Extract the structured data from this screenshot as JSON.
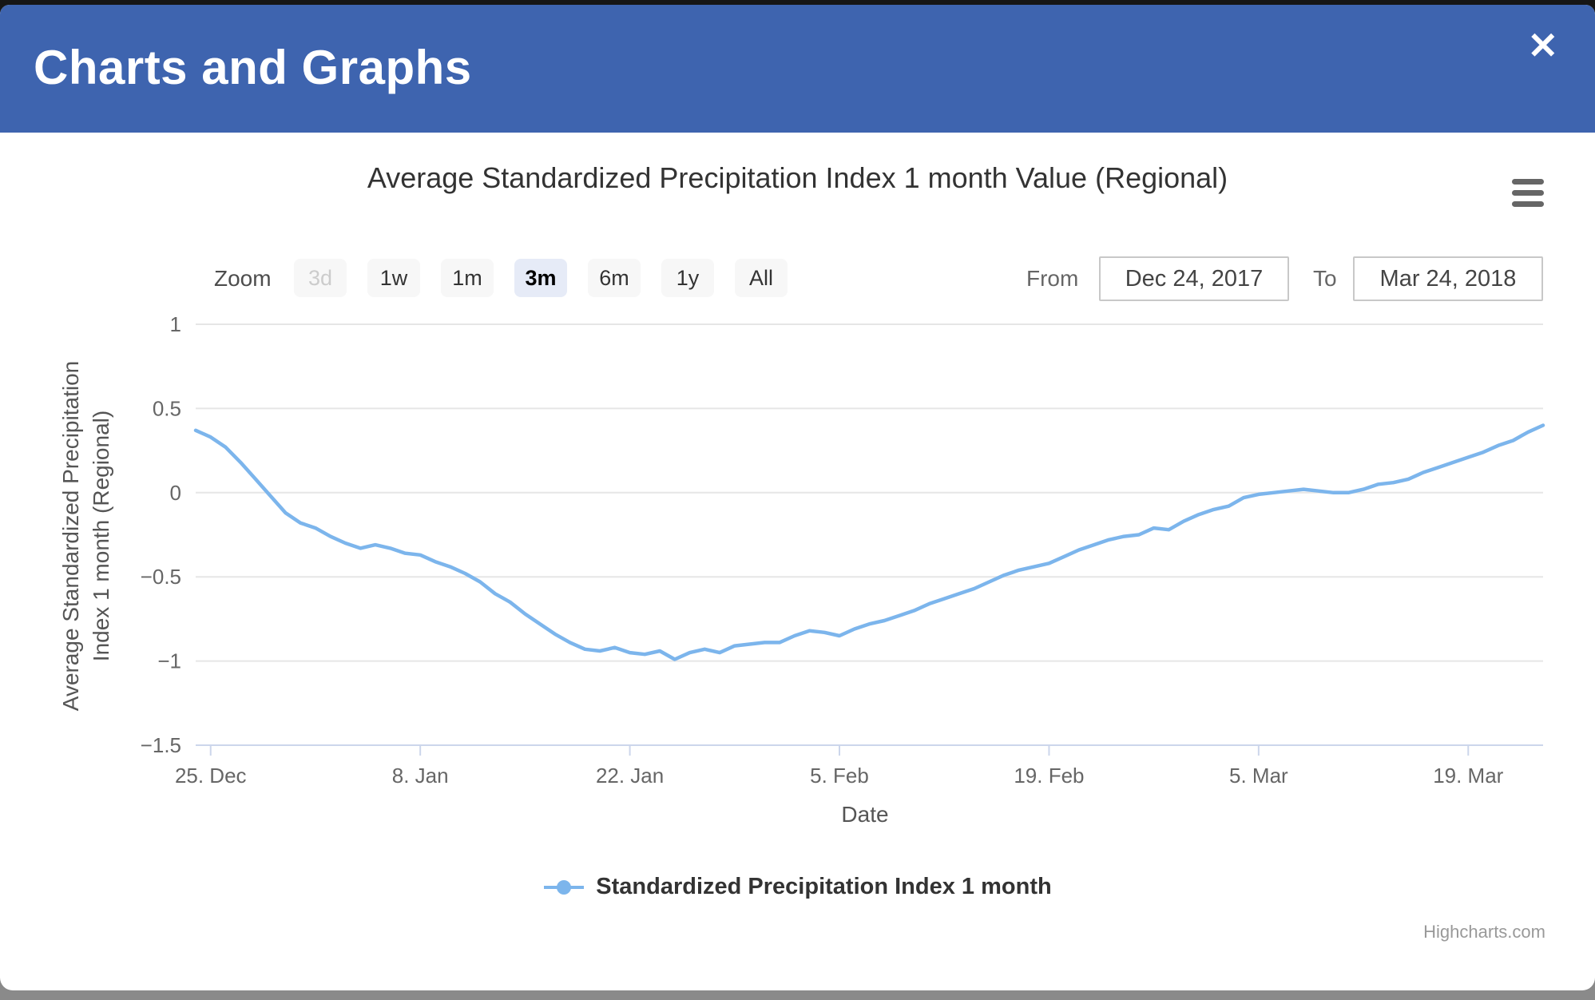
{
  "modal": {
    "title": "Charts and Graphs",
    "close_glyph": "✕"
  },
  "chart": {
    "title": "Average Standardized Precipitation Index 1 month Value (Regional)",
    "range_selector": {
      "zoom_label": "Zoom",
      "buttons": [
        {
          "label": "3d",
          "state": "disabled"
        },
        {
          "label": "1w",
          "state": "normal"
        },
        {
          "label": "1m",
          "state": "normal"
        },
        {
          "label": "3m",
          "state": "selected"
        },
        {
          "label": "6m",
          "state": "normal"
        },
        {
          "label": "1y",
          "state": "normal"
        },
        {
          "label": "All",
          "state": "normal"
        }
      ],
      "from_label": "From",
      "from_value": "Dec 24, 2017",
      "to_label": "To",
      "to_value": "Mar 24, 2018"
    },
    "credits": "Highcharts.com"
  },
  "chart_data": {
    "type": "line",
    "title": "Average Standardized Precipitation Index 1 month Value (Regional)",
    "xlabel": "Date",
    "ylabel_line1": "Average Standardized Precipitation",
    "ylabel_line2": "Index 1 month (Regional)",
    "x_range": [
      "Dec 24, 2017",
      "Mar 24, 2018"
    ],
    "x_ticks": [
      "25. Dec",
      "8. Jan",
      "22. Jan",
      "5. Feb",
      "19. Feb",
      "5. Mar",
      "19. Mar"
    ],
    "x_tick_days": [
      1,
      15,
      29,
      43,
      57,
      71,
      85
    ],
    "xlim_days": [
      0,
      90
    ],
    "y_ticks": [
      1,
      0.5,
      0,
      -0.5,
      -1,
      -1.5
    ],
    "y_tick_labels": [
      "1",
      "0.5",
      "0",
      "−0.5",
      "−1",
      "−1.5"
    ],
    "ylim": [
      -1.5,
      1
    ],
    "grid": true,
    "legend_position": "bottom",
    "series": [
      {
        "name": "Standardized Precipitation Index 1 month",
        "color": "#7cb5ec",
        "interval": "daily",
        "start_date": "2017-12-24",
        "end_date": "2018-03-24",
        "values": [
          0.37,
          0.33,
          0.27,
          0.18,
          0.08,
          -0.02,
          -0.12,
          -0.18,
          -0.21,
          -0.26,
          -0.3,
          -0.33,
          -0.31,
          -0.33,
          -0.36,
          -0.37,
          -0.41,
          -0.44,
          -0.48,
          -0.53,
          -0.6,
          -0.65,
          -0.72,
          -0.78,
          -0.84,
          -0.89,
          -0.93,
          -0.94,
          -0.92,
          -0.95,
          -0.96,
          -0.94,
          -0.99,
          -0.95,
          -0.93,
          -0.95,
          -0.91,
          -0.9,
          -0.89,
          -0.89,
          -0.85,
          -0.82,
          -0.83,
          -0.85,
          -0.81,
          -0.78,
          -0.76,
          -0.73,
          -0.7,
          -0.66,
          -0.63,
          -0.6,
          -0.57,
          -0.53,
          -0.49,
          -0.46,
          -0.44,
          -0.42,
          -0.38,
          -0.34,
          -0.31,
          -0.28,
          -0.26,
          -0.25,
          -0.21,
          -0.22,
          -0.17,
          -0.13,
          -0.1,
          -0.08,
          -0.03,
          -0.01,
          0.0,
          0.01,
          0.02,
          0.01,
          0.0,
          0.0,
          0.02,
          0.05,
          0.06,
          0.08,
          0.12,
          0.15,
          0.18,
          0.21,
          0.24,
          0.28,
          0.31,
          0.36,
          0.4
        ]
      }
    ]
  },
  "colors": {
    "header_blue": "#3e64af",
    "series_line": "#7cb5ec",
    "grid_line": "#e6e6e6",
    "axis_line": "#ccd6eb",
    "button_bg": "#f7f7f7",
    "selected_button_bg": "#e6ebf7"
  }
}
